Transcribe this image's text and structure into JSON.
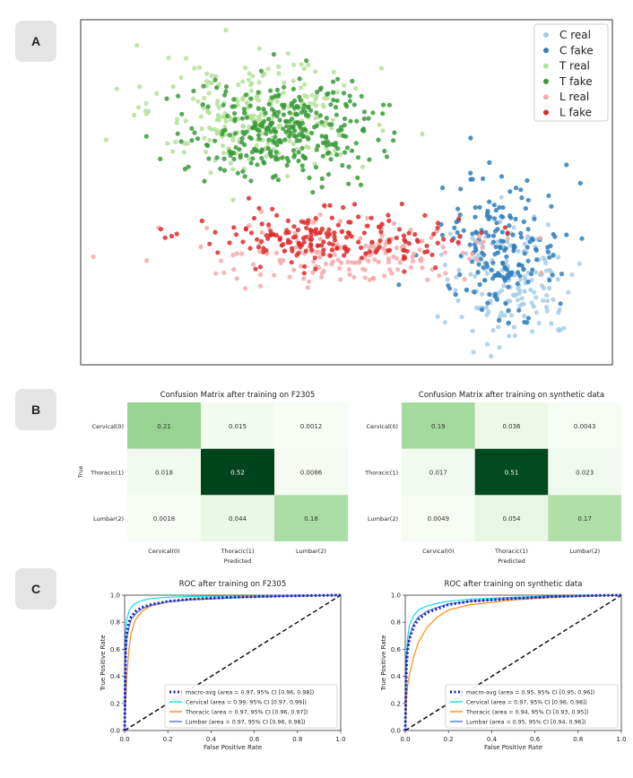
{
  "panels": {
    "a": "A",
    "b": "B",
    "c": "C"
  },
  "colors": {
    "c_real": "#a6cde6",
    "c_fake": "#2f7ebc",
    "t_real": "#b4e09a",
    "t_fake": "#3a9a3a",
    "l_real": "#f5a9a9",
    "l_fake": "#dc2b2b"
  },
  "chart_data": [
    {
      "type": "scatter",
      "panel": "A",
      "title": "",
      "xlabel": "",
      "ylabel": "",
      "axes_visible": false,
      "legend": {
        "placement": "top-right",
        "entries": [
          "C real",
          "C fake",
          "T real",
          "T fake",
          "L real",
          "L fake"
        ]
      },
      "series": [
        {
          "name": "C real",
          "color_key": "c_real",
          "count": 170,
          "center": [
            0.81,
            0.76
          ],
          "spread": [
            0.11,
            0.17
          ]
        },
        {
          "name": "C fake",
          "color_key": "c_fake",
          "count": 180,
          "center": [
            0.79,
            0.66
          ],
          "spread": [
            0.1,
            0.17
          ]
        },
        {
          "name": "T real",
          "color_key": "t_real",
          "count": 260,
          "center": [
            0.33,
            0.27
          ],
          "spread": [
            0.18,
            0.14
          ]
        },
        {
          "name": "T fake",
          "color_key": "t_fake",
          "count": 320,
          "center": [
            0.38,
            0.32
          ],
          "spread": [
            0.16,
            0.14
          ]
        },
        {
          "name": "L real",
          "color_key": "l_real",
          "count": 170,
          "center": [
            0.52,
            0.68
          ],
          "spread": [
            0.24,
            0.08
          ]
        },
        {
          "name": "L fake",
          "color_key": "l_fake",
          "count": 190,
          "center": [
            0.47,
            0.63
          ],
          "spread": [
            0.22,
            0.07
          ]
        }
      ],
      "note": "Point coordinates are unitless t-SNE embedding positions (no axes shown)."
    },
    {
      "type": "heatmap",
      "panel": "B-left",
      "title": "Confusion Matrix after training on F2305",
      "xlabel": "Predicted",
      "ylabel": "True",
      "row_labels": [
        "Cervical(0)",
        "Thoracic(1)",
        "Lumbar(2)"
      ],
      "col_labels": [
        "Cervical(0)",
        "Thoracic(1)",
        "Lumbar(2)"
      ],
      "values": [
        [
          0.21,
          0.015,
          0.0012
        ],
        [
          0.018,
          0.52,
          0.0086
        ],
        [
          0.0018,
          0.044,
          0.18
        ]
      ],
      "labels": [
        [
          "0.21",
          "0.015",
          "0.0012"
        ],
        [
          "0.018",
          "0.52",
          "0.0086"
        ],
        [
          "0.0018",
          "0.044",
          "0.18"
        ]
      ],
      "colormap": "Greens",
      "vmax": 0.52
    },
    {
      "type": "heatmap",
      "panel": "B-right",
      "title": "Confusion Matrix after training on synthetic data",
      "xlabel": "Predicted",
      "ylabel": "",
      "row_labels": [
        "Cervical(0)",
        "Thoracic(1)",
        "Lumbar(2)"
      ],
      "col_labels": [
        "Cervical(0)",
        "Thoracic(1)",
        "Lumbar(2)"
      ],
      "values": [
        [
          0.19,
          0.036,
          0.0043
        ],
        [
          0.017,
          0.51,
          0.023
        ],
        [
          0.0049,
          0.054,
          0.17
        ]
      ],
      "labels": [
        [
          "0.19",
          "0.036",
          "0.0043"
        ],
        [
          "0.017",
          "0.51",
          "0.023"
        ],
        [
          "0.0049",
          "0.054",
          "0.17"
        ]
      ],
      "colormap": "Greens",
      "vmax": 0.52
    },
    {
      "type": "line",
      "panel": "C-left",
      "title": "ROC after training on F2305",
      "xlabel": "False Positive Rate",
      "ylabel": "True Positive Rate",
      "xlim": [
        0,
        1
      ],
      "ylim": [
        0,
        1
      ],
      "ticks": [
        "0.0",
        "0.2",
        "0.4",
        "0.6",
        "0.8",
        "1.0"
      ],
      "legend": {
        "placement": "bottom-right"
      },
      "series": [
        {
          "name": "macro-avg (area = 0.97, 95% CI [0.96, 0.98])",
          "color": "#1f1fb4",
          "style": "dotted-thick",
          "x": [
            0,
            0.005,
            0.01,
            0.02,
            0.03,
            0.05,
            0.08,
            0.12,
            0.2,
            0.3,
            0.5,
            0.7,
            0.9,
            1.0
          ],
          "y": [
            0,
            0.62,
            0.72,
            0.8,
            0.84,
            0.88,
            0.91,
            0.93,
            0.955,
            0.97,
            0.985,
            0.993,
            0.998,
            1.0
          ]
        },
        {
          "name": "Cervical (area = 0.99, 95% CI [0.97, 0.99])",
          "color": "#17d7e6",
          "style": "solid",
          "x": [
            0,
            0.005,
            0.01,
            0.02,
            0.03,
            0.05,
            0.08,
            0.12,
            0.2,
            0.3,
            0.5,
            0.7,
            1.0
          ],
          "y": [
            0,
            0.72,
            0.82,
            0.88,
            0.91,
            0.94,
            0.96,
            0.975,
            0.985,
            0.99,
            0.995,
            0.998,
            1.0
          ]
        },
        {
          "name": "Thoracic (area = 0.97, 95% CI [0.96, 0.97])",
          "color": "#ff8c0a",
          "style": "solid",
          "x": [
            0,
            0.005,
            0.01,
            0.02,
            0.03,
            0.05,
            0.08,
            0.12,
            0.2,
            0.3,
            0.5,
            0.7,
            1.0
          ],
          "y": [
            0,
            0.2,
            0.4,
            0.6,
            0.72,
            0.82,
            0.88,
            0.92,
            0.95,
            0.97,
            0.985,
            0.995,
            1.0
          ]
        },
        {
          "name": "Lumbar (area = 0.97, 95% CI [0.96, 0.98])",
          "color": "#4a78e0",
          "style": "solid",
          "x": [
            0,
            0.005,
            0.01,
            0.02,
            0.03,
            0.05,
            0.08,
            0.12,
            0.2,
            0.3,
            0.5,
            0.7,
            1.0
          ],
          "y": [
            0,
            0.55,
            0.68,
            0.76,
            0.82,
            0.86,
            0.9,
            0.925,
            0.95,
            0.965,
            0.98,
            0.99,
            1.0
          ]
        },
        {
          "name": "chance",
          "color": "#000000",
          "style": "dashed",
          "x": [
            0,
            1
          ],
          "y": [
            0,
            1
          ]
        }
      ]
    },
    {
      "type": "line",
      "panel": "C-right",
      "title": "ROC after training on synthetic data",
      "xlabel": "False Positive Rate",
      "ylabel": "True Positive Rate",
      "xlim": [
        0,
        1
      ],
      "ylim": [
        0,
        1
      ],
      "ticks": [
        "0.0",
        "0.2",
        "0.4",
        "0.6",
        "0.8",
        "1.0"
      ],
      "legend": {
        "placement": "bottom-right"
      },
      "series": [
        {
          "name": "macro-avg (area = 0.95, 95% CI [0.95, 0.96])",
          "color": "#1f1fb4",
          "style": "dotted-thick",
          "x": [
            0,
            0.005,
            0.01,
            0.02,
            0.04,
            0.06,
            0.1,
            0.15,
            0.2,
            0.3,
            0.5,
            0.7,
            0.9,
            1.0
          ],
          "y": [
            0,
            0.45,
            0.58,
            0.68,
            0.77,
            0.82,
            0.87,
            0.9,
            0.93,
            0.955,
            0.975,
            0.99,
            0.998,
            1.0
          ]
        },
        {
          "name": "Cervical (area = 0.97, 95% CI [0.96, 0.98])",
          "color": "#17d7e6",
          "style": "solid",
          "x": [
            0,
            0.005,
            0.01,
            0.02,
            0.04,
            0.06,
            0.1,
            0.15,
            0.2,
            0.3,
            0.5,
            0.7,
            1.0
          ],
          "y": [
            0,
            0.55,
            0.68,
            0.78,
            0.85,
            0.89,
            0.92,
            0.94,
            0.955,
            0.97,
            0.985,
            0.995,
            1.0
          ]
        },
        {
          "name": "Thoracic (area = 0.94, 95% CI [0.93, 0.95])",
          "color": "#ff8c0a",
          "style": "solid",
          "x": [
            0,
            0.005,
            0.01,
            0.02,
            0.04,
            0.06,
            0.1,
            0.15,
            0.2,
            0.3,
            0.5,
            0.7,
            1.0
          ],
          "y": [
            0,
            0.22,
            0.32,
            0.42,
            0.55,
            0.65,
            0.76,
            0.84,
            0.89,
            0.93,
            0.965,
            0.985,
            1.0
          ]
        },
        {
          "name": "Lumbar (area = 0.95, 95% CI [0.94, 0.96])",
          "color": "#4a78e0",
          "style": "solid",
          "x": [
            0,
            0.005,
            0.01,
            0.02,
            0.04,
            0.06,
            0.1,
            0.15,
            0.2,
            0.3,
            0.5,
            0.7,
            1.0
          ],
          "y": [
            0,
            0.5,
            0.6,
            0.7,
            0.79,
            0.84,
            0.88,
            0.91,
            0.935,
            0.955,
            0.975,
            0.99,
            1.0
          ]
        },
        {
          "name": "chance",
          "color": "#000000",
          "style": "dashed",
          "x": [
            0,
            1
          ],
          "y": [
            0,
            1
          ]
        }
      ]
    }
  ]
}
